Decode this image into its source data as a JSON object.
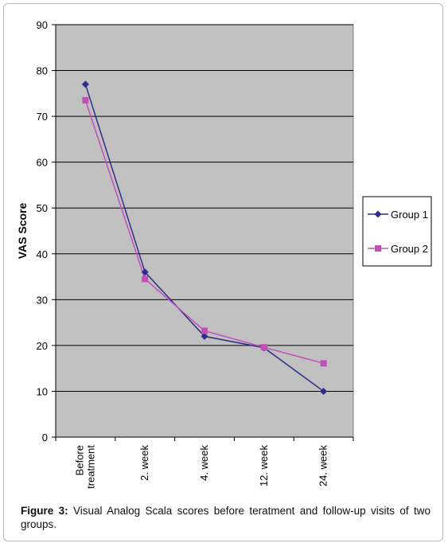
{
  "chart_data": {
    "type": "line",
    "categories": [
      "Before treatment",
      "2. week",
      "4. week",
      "12. week",
      "24. week"
    ],
    "category_lines": [
      [
        "Before",
        "treatment"
      ],
      [
        "2. week"
      ],
      [
        "4. week"
      ],
      [
        "12. week"
      ],
      [
        "24. week"
      ]
    ],
    "series": [
      {
        "name": "Group 1",
        "values": [
          77,
          36,
          22,
          19.5,
          10
        ],
        "color": "#2e2e8a",
        "marker": "diamond"
      },
      {
        "name": "Group 2",
        "values": [
          73.5,
          34.5,
          23.2,
          19.6,
          16.1
        ],
        "color": "#c050b8",
        "marker": "square"
      }
    ],
    "ylabel": "VAS Score",
    "ylim": [
      0,
      90
    ],
    "yticks": [
      0,
      10,
      20,
      30,
      40,
      50,
      60,
      70,
      80,
      90
    ],
    "grid": true,
    "plot_background": "#c0c0c0",
    "legend_position": "right"
  },
  "caption": {
    "label": "Figure 3:",
    "text": " Visual Analog Scala scores before teratment and follow-up visits of two groups."
  }
}
